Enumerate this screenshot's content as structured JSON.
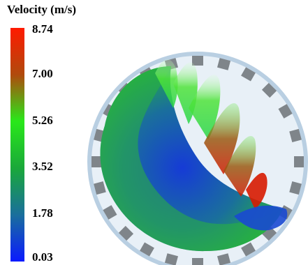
{
  "legend": {
    "title": "Velocity (m/s)",
    "ticks": [
      "8.74",
      "7.00",
      "5.26",
      "3.52",
      "1.78",
      "0.03"
    ],
    "gradient": [
      "#ff1a00",
      "#b04a0c",
      "#29e81a",
      "#1aa83a",
      "#1a6f9c",
      "#0a1aff"
    ]
  },
  "scene": {
    "subject": "rotating drum with particles",
    "colors": {
      "drum_fill": "#e6eff6",
      "drum_ring": "#b9cfe2",
      "lifter": "#7f858a"
    }
  }
}
